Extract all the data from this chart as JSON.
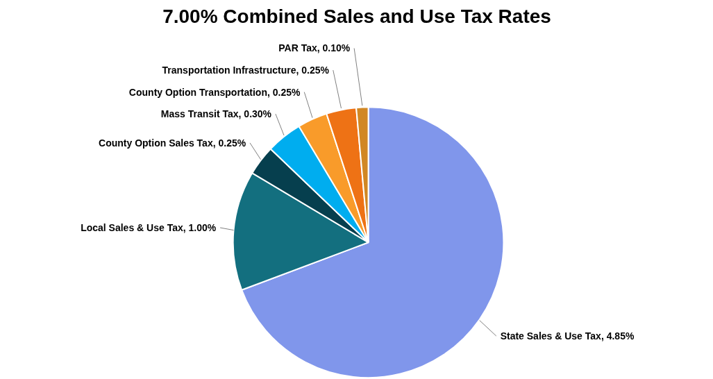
{
  "chart_data": {
    "type": "pie",
    "title": "7.00% Combined Sales and Use Tax Rates",
    "categories": [
      "State Sales & Use Tax",
      "Local Sales & Use Tax",
      "County Option Sales Tax",
      "Mass Transit Tax",
      "County Option Transportation",
      "Transportation Infrastructure",
      "PAR Tax"
    ],
    "values": [
      4.85,
      1.0,
      0.25,
      0.3,
      0.25,
      0.25,
      0.1
    ],
    "value_labels": [
      "4.85%",
      "1.00%",
      "0.25%",
      "0.30%",
      "0.25%",
      "0.25%",
      "0.10%"
    ],
    "colors": [
      "#8096eb",
      "#136f7f",
      "#063f4e",
      "#00adef",
      "#f99b2a",
      "#ee7215",
      "#d18724"
    ]
  }
}
